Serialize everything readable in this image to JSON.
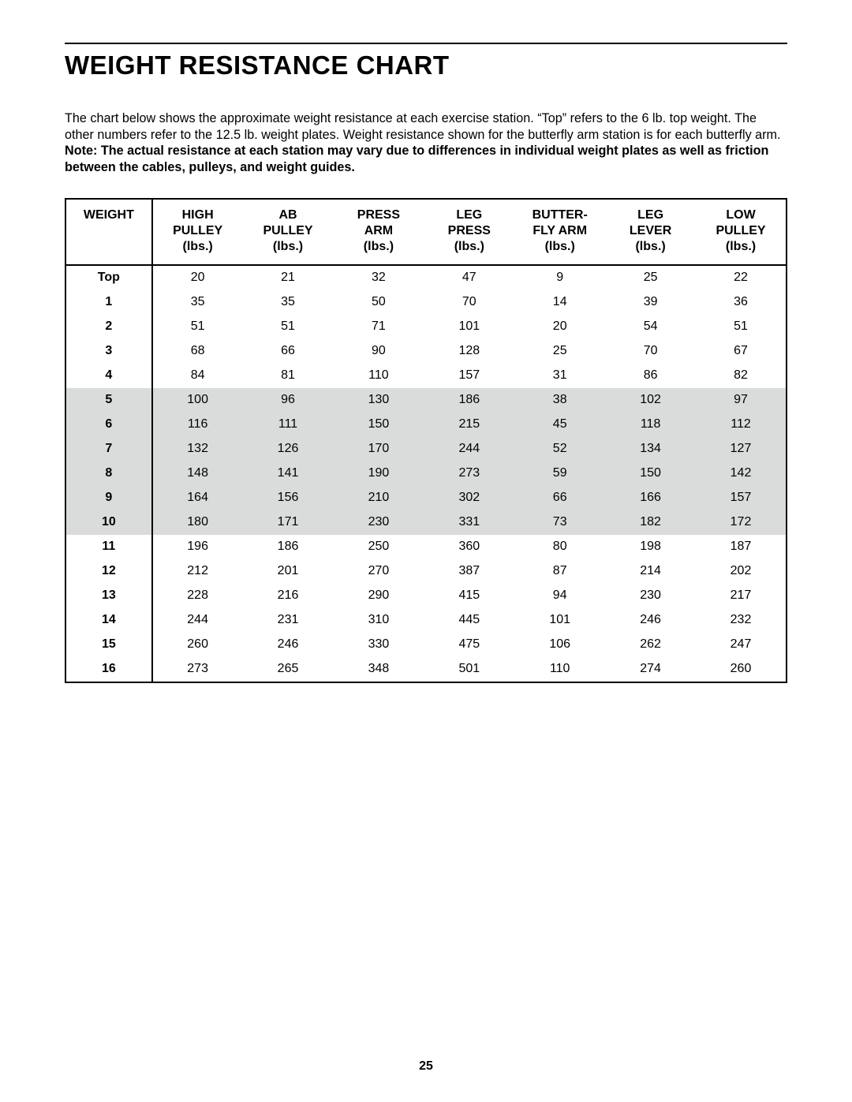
{
  "title": "WEIGHT RESISTANCE CHART",
  "intro": {
    "plain": "The chart below shows the approximate weight resistance at each exercise station. “Top” refers to the 6 lb. top weight. The other numbers refer to the 12.5 lb. weight plates. Weight resistance shown for the butterfly arm station is for each butterfly arm. ",
    "bold": "Note: The actual resistance at each station may vary due to differences in individual weight plates as well as friction between the cables, pulleys, and weight guides."
  },
  "page_number": "25",
  "table": {
    "type": "table",
    "border_color": "#000000",
    "shade_color": "#dadcdc",
    "header_fontsize": 16,
    "cell_fontsize": 16,
    "columns": [
      {
        "key": "weight",
        "lines": [
          "WEIGHT"
        ]
      },
      {
        "key": "high_pulley",
        "lines": [
          "HIGH",
          "PULLEY",
          "(lbs.)"
        ]
      },
      {
        "key": "ab_pulley",
        "lines": [
          "AB",
          "PULLEY",
          "(lbs.)"
        ]
      },
      {
        "key": "press_arm",
        "lines": [
          "PRESS",
          "ARM",
          "(lbs.)"
        ]
      },
      {
        "key": "leg_press",
        "lines": [
          "LEG",
          "PRESS",
          "(lbs.)"
        ]
      },
      {
        "key": "butterfly",
        "lines": [
          "BUTTER-",
          "FLY ARM",
          "(lbs.)"
        ]
      },
      {
        "key": "leg_lever",
        "lines": [
          "LEG",
          "LEVER",
          "(lbs.)"
        ]
      },
      {
        "key": "low_pulley",
        "lines": [
          "LOW",
          "PULLEY",
          "(lbs.)"
        ]
      }
    ],
    "rows": [
      {
        "shaded": false,
        "cells": [
          "Top",
          "20",
          "21",
          "32",
          "47",
          "9",
          "25",
          "22"
        ]
      },
      {
        "shaded": false,
        "cells": [
          "1",
          "35",
          "35",
          "50",
          "70",
          "14",
          "39",
          "36"
        ]
      },
      {
        "shaded": false,
        "cells": [
          "2",
          "51",
          "51",
          "71",
          "101",
          "20",
          "54",
          "51"
        ]
      },
      {
        "shaded": false,
        "cells": [
          "3",
          "68",
          "66",
          "90",
          "128",
          "25",
          "70",
          "67"
        ]
      },
      {
        "shaded": false,
        "cells": [
          "4",
          "84",
          "81",
          "110",
          "157",
          "31",
          "86",
          "82"
        ]
      },
      {
        "shaded": true,
        "cells": [
          "5",
          "100",
          "96",
          "130",
          "186",
          "38",
          "102",
          "97"
        ]
      },
      {
        "shaded": true,
        "cells": [
          "6",
          "116",
          "111",
          "150",
          "215",
          "45",
          "118",
          "112"
        ]
      },
      {
        "shaded": true,
        "cells": [
          "7",
          "132",
          "126",
          "170",
          "244",
          "52",
          "134",
          "127"
        ]
      },
      {
        "shaded": true,
        "cells": [
          "8",
          "148",
          "141",
          "190",
          "273",
          "59",
          "150",
          "142"
        ]
      },
      {
        "shaded": true,
        "cells": [
          "9",
          "164",
          "156",
          "210",
          "302",
          "66",
          "166",
          "157"
        ]
      },
      {
        "shaded": true,
        "cells": [
          "10",
          "180",
          "171",
          "230",
          "331",
          "73",
          "182",
          "172"
        ]
      },
      {
        "shaded": false,
        "cells": [
          "11",
          "196",
          "186",
          "250",
          "360",
          "80",
          "198",
          "187"
        ]
      },
      {
        "shaded": false,
        "cells": [
          "12",
          "212",
          "201",
          "270",
          "387",
          "87",
          "214",
          "202"
        ]
      },
      {
        "shaded": false,
        "cells": [
          "13",
          "228",
          "216",
          "290",
          "415",
          "94",
          "230",
          "217"
        ]
      },
      {
        "shaded": false,
        "cells": [
          "14",
          "244",
          "231",
          "310",
          "445",
          "101",
          "246",
          "232"
        ]
      },
      {
        "shaded": false,
        "cells": [
          "15",
          "260",
          "246",
          "330",
          "475",
          "106",
          "262",
          "247"
        ]
      },
      {
        "shaded": false,
        "cells": [
          "16",
          "273",
          "265",
          "348",
          "501",
          "110",
          "274",
          "260"
        ]
      }
    ]
  }
}
